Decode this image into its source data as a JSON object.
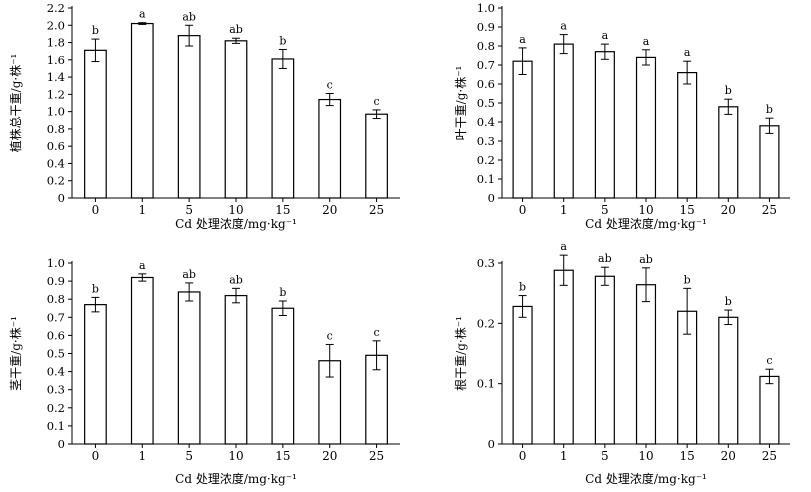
{
  "chart_data": [
    {
      "type": "bar",
      "categories": [
        "0",
        "1",
        "5",
        "10",
        "15",
        "20",
        "25"
      ],
      "values": [
        1.71,
        2.02,
        1.88,
        1.82,
        1.61,
        1.14,
        0.97
      ],
      "errors": [
        0.13,
        0.01,
        0.12,
        0.03,
        0.11,
        0.07,
        0.05
      ],
      "labels": [
        "b",
        "a",
        "ab",
        "ab",
        "b",
        "c",
        "c"
      ],
      "ylim": [
        0,
        2.2
      ],
      "yticks": [
        "0",
        "0.2",
        "0.4",
        "0.6",
        "0.8",
        "1.0",
        "1.2",
        "1.4",
        "1.6",
        "1.8",
        "2.0",
        "2.2"
      ],
      "ylabel": "植株总干重/g·株⁻¹",
      "xlabel": "Cd 处理浓度/mg·kg⁻¹"
    },
    {
      "type": "bar",
      "categories": [
        "0",
        "1",
        "5",
        "10",
        "15",
        "20",
        "25"
      ],
      "values": [
        0.72,
        0.81,
        0.77,
        0.74,
        0.66,
        0.48,
        0.38
      ],
      "errors": [
        0.07,
        0.05,
        0.04,
        0.04,
        0.06,
        0.04,
        0.04
      ],
      "labels": [
        "a",
        "a",
        "a",
        "a",
        "a",
        "b",
        "b"
      ],
      "ylim": [
        0,
        1.0
      ],
      "yticks": [
        "0",
        "0.1",
        "0.2",
        "0.3",
        "0.4",
        "0.5",
        "0.6",
        "0.7",
        "0.8",
        "0.9",
        "1.0"
      ],
      "ylabel": "叶干重/g·株⁻¹",
      "xlabel": "Cd 处理浓度/mg·kg⁻¹"
    },
    {
      "type": "bar",
      "categories": [
        "0",
        "1",
        "5",
        "10",
        "15",
        "20",
        "25"
      ],
      "values": [
        0.77,
        0.92,
        0.84,
        0.82,
        0.75,
        0.46,
        0.49
      ],
      "errors": [
        0.04,
        0.02,
        0.05,
        0.04,
        0.04,
        0.09,
        0.08
      ],
      "labels": [
        "b",
        "a",
        "ab",
        "ab",
        "b",
        "c",
        "c"
      ],
      "ylim": [
        0,
        1.0
      ],
      "yticks": [
        "0",
        "0.1",
        "0.2",
        "0.3",
        "0.4",
        "0.5",
        "0.6",
        "0.7",
        "0.8",
        "0.9",
        "1.0"
      ],
      "ylabel": "茎干重/g·株⁻¹",
      "xlabel": "Cd 处理浓度/mg·kg⁻¹"
    },
    {
      "type": "bar",
      "categories": [
        "0",
        "1",
        "5",
        "10",
        "15",
        "20",
        "25"
      ],
      "values": [
        0.228,
        0.288,
        0.278,
        0.264,
        0.22,
        0.21,
        0.112
      ],
      "errors": [
        0.018,
        0.025,
        0.015,
        0.028,
        0.038,
        0.012,
        0.012
      ],
      "labels": [
        "b",
        "a",
        "ab",
        "ab",
        "b",
        "b",
        "c"
      ],
      "ylim": [
        0,
        0.3
      ],
      "yticks": [
        "0",
        "0.1",
        "0.2",
        "0.3"
      ],
      "ylabel": "根干重/g·株⁻¹",
      "xlabel": "Cd 处理浓度/mg·kg⁻¹"
    }
  ]
}
